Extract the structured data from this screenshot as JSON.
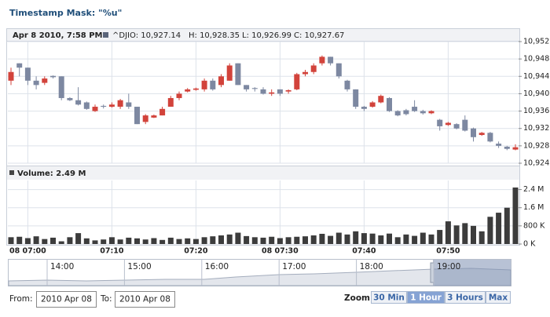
{
  "header": {
    "title": "Timestamp Mask: \"%u\""
  },
  "chart_data": [
    {
      "type": "candlestick",
      "legend": {
        "date": "Apr 8 2010, 7:58 PM:",
        "symbol": "^DJI",
        "items": [
          "O: 10,927.14",
          "H: 10,928.35",
          "L: 10,926.99",
          "C: 10,927.67"
        ]
      },
      "x": [
        "06:58",
        "06:59",
        "07:00",
        "07:01",
        "07:02",
        "07:03",
        "07:04",
        "07:05",
        "07:06",
        "07:07",
        "07:08",
        "07:09",
        "07:10",
        "07:11",
        "07:12",
        "07:13",
        "07:14",
        "07:15",
        "07:16",
        "07:17",
        "07:18",
        "07:19",
        "07:20",
        "07:21",
        "07:22",
        "07:23",
        "07:24",
        "07:25",
        "07:26",
        "07:27",
        "07:28",
        "07:29",
        "07:30",
        "07:31",
        "07:32",
        "07:33",
        "07:34",
        "07:35",
        "07:36",
        "07:37",
        "07:38",
        "07:39",
        "07:40",
        "07:41",
        "07:42",
        "07:43",
        "07:44",
        "07:45",
        "07:46",
        "07:47",
        "07:48",
        "07:49",
        "07:50",
        "07:51",
        "07:52",
        "07:53",
        "07:54",
        "07:55",
        "07:56",
        "07:57",
        "07:58"
      ],
      "open": [
        10943,
        10947,
        10946,
        10943,
        10942.5,
        10944.1,
        10944,
        10939,
        10938.5,
        10938,
        10936,
        10937.2,
        10937,
        10937,
        10938,
        10937,
        10933.5,
        10934.5,
        10935,
        10937,
        10939,
        10940.5,
        10940.9,
        10941,
        10943,
        10942,
        10943,
        10947,
        10942,
        10941.3,
        10941,
        10940,
        10941,
        10940.5,
        10941,
        10944.5,
        10945,
        10947,
        10948.5,
        10947,
        10943,
        10941,
        10937,
        10937,
        10938,
        10939,
        10936,
        10936.2,
        10937,
        10936,
        10935.5,
        10934,
        10932.8,
        10933,
        10934,
        10932,
        10930.5,
        10931,
        10928.5,
        10927.8,
        10927.14
      ],
      "high": [
        10946,
        10947,
        10946,
        10944,
        10944,
        10944.2,
        10944,
        10939.2,
        10941.5,
        10938.2,
        10937.5,
        10937.5,
        10938,
        10938.8,
        10940,
        10937,
        10935.3,
        10935.2,
        10937,
        10939.5,
        10940.5,
        10941.3,
        10941.4,
        10943.5,
        10943.5,
        10944.5,
        10947,
        10947,
        10942,
        10941.5,
        10941.5,
        10941,
        10941,
        10941,
        10944.8,
        10945.5,
        10947,
        10948.8,
        10948.5,
        10947,
        10943.2,
        10941,
        10937.2,
        10938.3,
        10939.8,
        10939.2,
        10936.2,
        10936.5,
        10938.5,
        10936.3,
        10936.2,
        10934.2,
        10933.5,
        10933.2,
        10935,
        10932.2,
        10931.2,
        10931.2,
        10929,
        10928,
        10928.35
      ],
      "low": [
        10942,
        10944,
        10942,
        10941,
        10942,
        10943.5,
        10938.5,
        10938.3,
        10937.3,
        10936.3,
        10935.8,
        10936.6,
        10936.8,
        10936.5,
        10936.5,
        10933,
        10933,
        10934.4,
        10935,
        10937,
        10938.5,
        10940.3,
        10940.7,
        10940.5,
        10940.7,
        10941.5,
        10943,
        10942,
        10940.5,
        10940.5,
        10939.8,
        10939.5,
        10939.5,
        10940,
        10940.8,
        10944,
        10944.5,
        10946.5,
        10946.5,
        10943.5,
        10940.5,
        10936.5,
        10936,
        10936.8,
        10937.8,
        10935.8,
        10934.8,
        10935,
        10935.8,
        10935.2,
        10935.3,
        10931.5,
        10932.6,
        10931.8,
        10931.3,
        10929,
        10930.3,
        10928.8,
        10927.5,
        10927,
        10926.99
      ],
      "close": [
        10945,
        10946,
        10943,
        10942,
        10943.5,
        10943.8,
        10939,
        10938.5,
        10937.5,
        10936.5,
        10937,
        10937,
        10937.5,
        10938.5,
        10937,
        10933,
        10935,
        10935,
        10936.5,
        10939,
        10940,
        10941,
        10941.2,
        10943,
        10941,
        10944,
        10946.5,
        10942,
        10941,
        10941.1,
        10940,
        10940.3,
        10940,
        10940.8,
        10944.5,
        10945,
        10946.5,
        10948.5,
        10947,
        10944,
        10941,
        10937,
        10936.5,
        10938,
        10939.5,
        10936,
        10935,
        10935.3,
        10936,
        10935.5,
        10936,
        10932.5,
        10933.3,
        10932,
        10931.5,
        10930,
        10931,
        10929,
        10928,
        10927.3,
        10927.67
      ],
      "up_color": "#d2433b",
      "down_color": "#7d88a1",
      "xlim": [
        "06:58",
        "07:58"
      ],
      "xticks": [
        {
          "value": "07:00",
          "label": "08 07:00"
        },
        "07:10",
        "07:20",
        {
          "value": "07:30",
          "label": "08 07:30"
        },
        "07:40",
        "07:50"
      ],
      "ylim": [
        10924,
        10952
      ],
      "yticks": [
        {
          "value": 10924,
          "label": "10,924"
        },
        {
          "value": 10928,
          "label": "10,928"
        },
        {
          "value": 10932,
          "label": "10,932"
        },
        {
          "value": 10936,
          "label": "10,936"
        },
        {
          "value": 10940,
          "label": "10,940"
        },
        {
          "value": 10944,
          "label": "10,944"
        },
        {
          "value": 10948,
          "label": "10,948"
        },
        {
          "value": 10952,
          "label": "10,952"
        }
      ],
      "grid": true
    },
    {
      "type": "bar",
      "title": "Volume: 2.49 M",
      "color": "#3c3c3c",
      "values": [
        300000,
        320000,
        260000,
        340000,
        220000,
        280000,
        120000,
        300000,
        480000,
        250000,
        160000,
        200000,
        300000,
        200000,
        280000,
        250000,
        200000,
        260000,
        180000,
        280000,
        220000,
        250000,
        220000,
        300000,
        340000,
        380000,
        420000,
        500000,
        350000,
        300000,
        280000,
        320000,
        260000,
        300000,
        320000,
        340000,
        380000,
        450000,
        360000,
        500000,
        420000,
        560000,
        480000,
        460000,
        380000,
        460000,
        300000,
        420000,
        360000,
        500000,
        420000,
        620000,
        1000000,
        820000,
        920000,
        800000,
        560000,
        1200000,
        1380000,
        1600000,
        2490000
      ],
      "ylim": [
        0,
        2800000
      ],
      "yticks": [
        {
          "value": 0,
          "label": "0 K"
        },
        {
          "value": 800000,
          "label": "800 K"
        },
        {
          "value": 1600000,
          "label": "1.6 M"
        },
        {
          "value": 2400000,
          "label": "2.4 M"
        }
      ],
      "grid": true
    }
  ],
  "navigator": {
    "labels": [
      "14:00",
      "15:00",
      "16:00",
      "17:00",
      "18:00",
      "19:00"
    ]
  },
  "controls": {
    "from_label": "From:",
    "from": "2010 Apr 08",
    "to_label": "To:",
    "to": "2010 Apr 08",
    "zoom_label": "Zoom:",
    "zoom_buttons": [
      "30 Min",
      "1 Hour",
      "3 Hours",
      "Max"
    ],
    "zoom_selected": 1
  }
}
